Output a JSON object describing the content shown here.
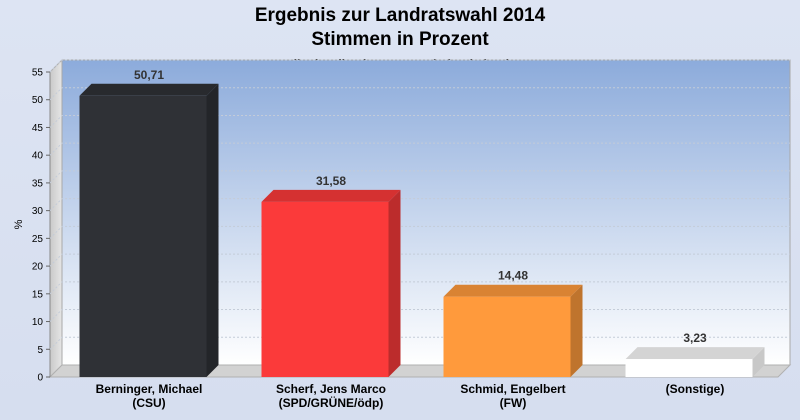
{
  "chart_data": {
    "type": "bar",
    "title": "Ergebnis zur Landratswahl 2014",
    "title_line2": "Stimmen in Prozent",
    "subtitle": "Landkreis Miltenberg - Gemeinde Niedernberg",
    "ylabel": "%",
    "ylim": [
      0,
      55
    ],
    "yticks": [
      0,
      5,
      10,
      15,
      20,
      25,
      30,
      35,
      40,
      45,
      50,
      55
    ],
    "grid": true,
    "categories": [
      [
        "Berninger, Michael",
        "(CSU)"
      ],
      [
        "Scherf, Jens Marco",
        "(SPD/GRÜNE/ödp)"
      ],
      [
        "Schmid, Engelbert",
        "(FW)"
      ],
      [
        "(Sonstige)"
      ]
    ],
    "values": [
      50.71,
      31.58,
      14.48,
      3.23
    ],
    "value_labels": [
      "50,71",
      "31,58",
      "14,48",
      "3,23"
    ],
    "colors": [
      "#2f3136",
      "#fb3a3a",
      "#ff9a3c",
      "#ffffff"
    ]
  }
}
